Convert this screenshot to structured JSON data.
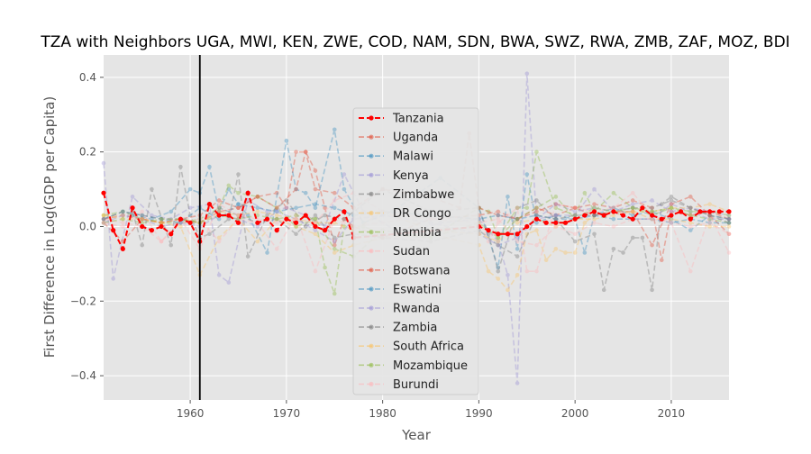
{
  "chart_data": {
    "type": "line",
    "title": "TZA with Neighbors UGA, MWI, KEN, ZWE, COD, NAM, SDN, BWA, SWZ, RWA, ZMB, ZAF, MOZ, BDI",
    "xlabel": "Year",
    "ylabel": "First Difference in Log(GDP per Capita)",
    "xlim": [
      1951,
      2016
    ],
    "ylim": [
      -0.465,
      0.46
    ],
    "xticks": [
      1960,
      1970,
      1980,
      1990,
      2000,
      2010
    ],
    "yticks": [
      -0.4,
      -0.2,
      0.0,
      0.2,
      0.4
    ],
    "ytick_labels": [
      "−0.4",
      "−0.2",
      "0.0",
      "0.2",
      "0.4"
    ],
    "grid": true,
    "legend_position": "center",
    "vertical_line": {
      "x": 1961,
      "color": "#000000"
    },
    "series": [
      {
        "name": "Tanzania",
        "color": "#ff0000",
        "x": [
          1951,
          1952,
          1953,
          1954,
          1955,
          1956,
          1957,
          1958,
          1959,
          1960,
          1961,
          1962,
          1963,
          1964,
          1965,
          1966,
          1967,
          1968,
          1969,
          1970,
          1971,
          1972,
          1973,
          1974,
          1975,
          1976,
          1977,
          1990,
          1991,
          1992,
          1993,
          1994,
          1995,
          1996,
          1997,
          1998,
          1999,
          2000,
          2001,
          2002,
          2003,
          2004,
          2005,
          2006,
          2007,
          2008,
          2009,
          2010,
          2011,
          2012,
          2013,
          2014,
          2015,
          2016
        ],
        "values": [
          0.09,
          -0.01,
          -0.06,
          0.05,
          0.0,
          -0.01,
          0.0,
          -0.02,
          0.02,
          0.01,
          -0.04,
          0.06,
          0.03,
          0.03,
          0.01,
          0.09,
          0.01,
          0.02,
          -0.01,
          0.02,
          0.01,
          0.03,
          0.0,
          -0.01,
          0.02,
          0.04,
          -0.03,
          0.0,
          -0.01,
          -0.02,
          -0.02,
          -0.02,
          0.0,
          0.02,
          0.01,
          0.01,
          0.01,
          0.02,
          0.03,
          0.04,
          0.03,
          0.04,
          0.03,
          0.02,
          0.05,
          0.03,
          0.02,
          0.03,
          0.04,
          0.02,
          0.04,
          0.04,
          0.04,
          0.04
        ]
      },
      {
        "name": "Uganda",
        "color": "#e24a33",
        "x": [
          1951,
          1953,
          1955,
          1957,
          1959,
          1961,
          1963,
          1965,
          1967,
          1969,
          1970,
          1971,
          1972,
          1973,
          1974,
          1975,
          1976,
          1977,
          1980,
          1985,
          1990,
          1992,
          1994,
          1996,
          1998,
          2000,
          2002,
          2004,
          2006,
          2008,
          2009,
          2010,
          2012,
          2014,
          2016
        ],
        "values": [
          0.02,
          0.03,
          0.02,
          0.01,
          0.02,
          0.01,
          0.04,
          0.05,
          0.08,
          0.09,
          0.05,
          0.2,
          0.2,
          0.15,
          0.05,
          -0.05,
          0.02,
          0.0,
          -0.03,
          0.02,
          0.03,
          0.04,
          0.02,
          0.05,
          0.03,
          0.05,
          0.06,
          0.05,
          0.07,
          0.05,
          -0.09,
          0.04,
          0.03,
          0.04,
          0.02
        ]
      },
      {
        "name": "Malawi",
        "color": "#348abd",
        "x": [
          1954,
          1956,
          1958,
          1960,
          1961,
          1962,
          1963,
          1964,
          1965,
          1966,
          1968,
          1970,
          1971,
          1972,
          1973,
          1975,
          1976,
          1978,
          1981,
          1986,
          1990,
          1992,
          1993,
          1994,
          1995,
          1996,
          1998,
          2000,
          2001,
          2002,
          2004,
          2006,
          2008,
          2010,
          2012,
          2014,
          2016
        ],
        "values": [
          0.03,
          0.02,
          0.04,
          0.1,
          0.09,
          0.16,
          0.04,
          0.1,
          0.06,
          0.03,
          -0.07,
          0.23,
          0.1,
          0.09,
          0.05,
          0.26,
          0.1,
          0.01,
          0.04,
          0.13,
          0.05,
          -0.11,
          0.08,
          -0.06,
          0.14,
          0.01,
          0.03,
          0.02,
          -0.07,
          0.03,
          0.05,
          0.03,
          0.04,
          0.02,
          -0.01,
          0.03,
          0.02
        ]
      },
      {
        "name": "Kenya",
        "color": "#988ed5",
        "x": [
          1951,
          1952,
          1954,
          1956,
          1958,
          1960,
          1962,
          1963,
          1964,
          1966,
          1968,
          1970,
          1972,
          1974,
          1976,
          1978,
          1982,
          1986,
          1990,
          1992,
          1993,
          1994,
          1995,
          1996,
          1998,
          2000,
          2002,
          2004,
          2006,
          2008,
          2010,
          2012,
          2014,
          2016
        ],
        "values": [
          0.17,
          -0.14,
          0.08,
          0.03,
          0.02,
          0.05,
          0.06,
          -0.13,
          -0.15,
          0.07,
          0.04,
          0.05,
          0.03,
          0.0,
          0.14,
          0.04,
          -0.02,
          0.01,
          0.02,
          -0.04,
          -0.13,
          -0.42,
          0.41,
          0.02,
          0.03,
          0.03,
          0.1,
          0.04,
          0.02,
          0.02,
          0.06,
          0.04,
          0.02,
          0.02
        ]
      },
      {
        "name": "Zimbabwe",
        "color": "#777777",
        "x": [
          1954,
          1955,
          1956,
          1958,
          1959,
          1960,
          1961,
          1962,
          1964,
          1965,
          1966,
          1968,
          1970,
          1972,
          1974,
          1976,
          1980,
          1985,
          1990,
          1991,
          1992,
          1994,
          1996,
          1998,
          2000,
          2002,
          2003,
          2004,
          2005,
          2006,
          2007,
          2008,
          2009,
          2010,
          2012,
          2014,
          2016
        ],
        "values": [
          0.04,
          -0.05,
          0.1,
          -0.05,
          0.16,
          0.03,
          -0.03,
          -0.02,
          0.02,
          0.14,
          -0.08,
          0.03,
          0.07,
          0.0,
          0.03,
          0.02,
          0.1,
          0.04,
          0.05,
          -0.02,
          -0.12,
          0.05,
          0.07,
          0.02,
          -0.04,
          -0.02,
          -0.17,
          -0.06,
          -0.07,
          -0.03,
          -0.03,
          -0.17,
          0.06,
          0.08,
          0.05,
          0.03,
          0.02
        ]
      },
      {
        "name": "DR Congo",
        "color": "#fbc15e",
        "x": [
          1951,
          1953,
          1955,
          1957,
          1959,
          1961,
          1963,
          1965,
          1967,
          1969,
          1971,
          1973,
          1975,
          1977,
          1980,
          1985,
          1990,
          1991,
          1992,
          1993,
          1994,
          1995,
          1996,
          1997,
          1998,
          1999,
          2000,
          2001,
          2002,
          2004,
          2006,
          2008,
          2010,
          2012,
          2014,
          2016
        ],
        "values": [
          0.03,
          0.03,
          0.02,
          0.01,
          0.0,
          -0.13,
          -0.03,
          0.02,
          -0.04,
          0.02,
          0.0,
          -0.02,
          -0.07,
          -0.05,
          -0.03,
          -0.02,
          -0.05,
          -0.12,
          -0.14,
          -0.17,
          -0.13,
          -0.02,
          -0.01,
          -0.09,
          -0.06,
          -0.07,
          -0.07,
          0.01,
          0.03,
          0.04,
          0.04,
          0.04,
          0.05,
          0.05,
          0.06,
          0.04
        ]
      },
      {
        "name": "Namibia",
        "color": "#8eba42",
        "x": [
          1951,
          1953,
          1955,
          1957,
          1959,
          1961,
          1963,
          1964,
          1965,
          1967,
          1969,
          1971,
          1973,
          1974,
          1975,
          1976,
          1978,
          1980,
          1985,
          1990,
          1991,
          1992,
          1994,
          1995,
          1996,
          1998,
          2000,
          2001,
          2002,
          2004,
          2006,
          2008,
          2010,
          2012,
          2014,
          2016
        ],
        "values": [
          0.03,
          0.04,
          0.02,
          0.01,
          0.01,
          0.02,
          0.05,
          0.11,
          0.09,
          0.08,
          0.05,
          0.0,
          0.02,
          -0.11,
          -0.18,
          0.0,
          0.0,
          -0.02,
          -0.03,
          0.05,
          0.04,
          -0.03,
          0.05,
          0.05,
          0.2,
          0.05,
          0.03,
          0.09,
          0.04,
          0.09,
          0.05,
          0.03,
          0.05,
          0.03,
          0.02,
          0.01
        ]
      },
      {
        "name": "Sudan",
        "color": "#ffb5b8",
        "x": [
          1951,
          1953,
          1955,
          1957,
          1959,
          1961,
          1963,
          1965,
          1967,
          1969,
          1971,
          1973,
          1975,
          1977,
          1980,
          1985,
          1990,
          1991,
          1992,
          1993,
          1994,
          1995,
          1996,
          1998,
          2000,
          2002,
          2004,
          2006,
          2008,
          2010,
          2012,
          2014,
          2016
        ],
        "values": [
          0.02,
          0.01,
          0.0,
          -0.04,
          0.01,
          0.02,
          -0.04,
          0.02,
          0.01,
          -0.06,
          0.03,
          -0.12,
          0.02,
          0.0,
          0.01,
          0.03,
          0.02,
          -0.04,
          0.01,
          0.03,
          0.05,
          -0.12,
          -0.12,
          0.06,
          0.05,
          0.04,
          0.05,
          0.09,
          0.03,
          0.01,
          -0.12,
          0.03,
          -0.07
        ]
      },
      {
        "name": "Botswana",
        "color": "#e24a33",
        "x": [
          1951,
          1953,
          1955,
          1957,
          1959,
          1961,
          1963,
          1965,
          1967,
          1969,
          1971,
          1972,
          1973,
          1975,
          1977,
          1980,
          1985,
          1988,
          1989,
          1990,
          1992,
          1994,
          1996,
          1998,
          2000,
          2002,
          2004,
          2006,
          2008,
          2010,
          2012,
          2014,
          2016
        ],
        "values": [
          0.01,
          -0.04,
          0.02,
          0.01,
          0.02,
          0.03,
          0.07,
          0.05,
          0.08,
          0.05,
          0.1,
          0.2,
          0.1,
          0.09,
          0.05,
          0.1,
          0.08,
          0.05,
          0.25,
          0.05,
          0.03,
          0.02,
          0.04,
          0.06,
          0.05,
          0.03,
          0.04,
          0.04,
          -0.05,
          0.06,
          0.08,
          0.03,
          -0.02
        ]
      },
      {
        "name": "Eswatini",
        "color": "#348abd",
        "x": [
          1951,
          1953,
          1955,
          1957,
          1959,
          1961,
          1963,
          1965,
          1967,
          1969,
          1971,
          1973,
          1975,
          1977,
          1980,
          1985,
          1990,
          1992,
          1994,
          1996,
          1998,
          2000,
          2002,
          2004,
          2006,
          2008,
          2010,
          2012,
          2014,
          2016
        ],
        "values": [
          0.02,
          0.04,
          0.03,
          0.02,
          0.01,
          0.05,
          0.02,
          0.06,
          0.05,
          0.04,
          0.05,
          0.06,
          0.05,
          0.03,
          0.04,
          0.03,
          0.02,
          0.03,
          0.02,
          0.03,
          0.02,
          0.02,
          0.03,
          0.02,
          0.02,
          0.02,
          0.01,
          0.02,
          0.01,
          0.01
        ]
      },
      {
        "name": "Rwanda",
        "color": "#988ed5",
        "x": [
          1951,
          1953,
          1955,
          1957,
          1959,
          1961,
          1963,
          1965,
          1967,
          1969,
          1971,
          1973,
          1975,
          1977,
          1980,
          1985,
          1990,
          1992,
          1994,
          1996,
          1998,
          2000,
          2002,
          2004,
          2006,
          2008,
          2010,
          2012,
          2014,
          2016
        ],
        "values": [
          0.01,
          0.03,
          0.02,
          0.0,
          0.01,
          0.0,
          0.03,
          0.02,
          0.0,
          0.04,
          0.02,
          -0.01,
          -0.04,
          0.02,
          0.03,
          0.01,
          -0.02,
          -0.05,
          -0.03,
          0.02,
          0.06,
          0.04,
          0.05,
          0.04,
          0.06,
          0.07,
          0.04,
          0.05,
          0.04,
          0.03
        ]
      },
      {
        "name": "Zambia",
        "color": "#777777",
        "x": [
          1951,
          1953,
          1955,
          1957,
          1959,
          1961,
          1963,
          1965,
          1967,
          1969,
          1971,
          1973,
          1975,
          1977,
          1980,
          1985,
          1990,
          1992,
          1994,
          1996,
          1998,
          2000,
          2002,
          2004,
          2006,
          2008,
          2010,
          2012,
          2014,
          2016
        ],
        "values": [
          0.02,
          0.04,
          0.03,
          0.02,
          0.02,
          0.01,
          0.05,
          0.03,
          0.01,
          0.02,
          -0.02,
          0.03,
          -0.03,
          -0.02,
          -0.03,
          -0.04,
          -0.01,
          -0.05,
          -0.08,
          0.03,
          0.02,
          0.03,
          0.03,
          0.04,
          0.05,
          0.05,
          0.07,
          0.05,
          0.03,
          0.01
        ]
      },
      {
        "name": "South Africa",
        "color": "#fbc15e",
        "x": [
          1951,
          1953,
          1955,
          1957,
          1959,
          1961,
          1963,
          1965,
          1967,
          1969,
          1971,
          1973,
          1975,
          1977,
          1980,
          1985,
          1990,
          1992,
          1994,
          1996,
          1998,
          2000,
          2002,
          2004,
          2006,
          2008,
          2010,
          2012,
          2014,
          2016
        ],
        "values": [
          0.03,
          0.02,
          0.02,
          0.01,
          0.02,
          0.01,
          0.04,
          0.03,
          0.04,
          0.03,
          0.02,
          0.01,
          0.01,
          -0.01,
          0.04,
          -0.01,
          -0.02,
          -0.04,
          0.01,
          0.02,
          0.0,
          0.02,
          0.02,
          0.03,
          0.04,
          0.02,
          0.02,
          0.01,
          0.0,
          0.0
        ]
      },
      {
        "name": "Mozambique",
        "color": "#8eba42",
        "x": [
          1951,
          1953,
          1955,
          1957,
          1959,
          1961,
          1963,
          1965,
          1967,
          1969,
          1971,
          1973,
          1975,
          1977,
          1980,
          1985,
          1990,
          1992,
          1994,
          1996,
          1998,
          2000,
          2002,
          2004,
          2006,
          2008,
          2010,
          2012,
          2014,
          2016
        ],
        "values": [
          0.01,
          0.02,
          0.01,
          0.02,
          0.02,
          0.01,
          0.03,
          0.02,
          0.03,
          0.02,
          0.03,
          0.02,
          -0.06,
          -0.08,
          -0.01,
          -0.03,
          0.01,
          -0.03,
          0.02,
          0.05,
          0.08,
          0.02,
          0.05,
          0.04,
          0.05,
          0.04,
          0.05,
          0.04,
          0.04,
          0.03
        ]
      },
      {
        "name": "Burundi",
        "color": "#ffb5b8",
        "x": [
          1951,
          1953,
          1955,
          1957,
          1959,
          1961,
          1963,
          1965,
          1967,
          1969,
          1971,
          1973,
          1975,
          1977,
          1980,
          1985,
          1990,
          1992,
          1994,
          1996,
          1998,
          2000,
          2002,
          2004,
          2006,
          2008,
          2010,
          2012,
          2014,
          2016
        ],
        "values": [
          0.01,
          0.0,
          0.04,
          -0.04,
          0.02,
          -0.06,
          0.06,
          0.03,
          0.02,
          0.01,
          0.02,
          0.01,
          0.07,
          0.09,
          0.04,
          0.02,
          0.01,
          0.02,
          -0.04,
          -0.05,
          0.0,
          -0.02,
          0.01,
          0.0,
          0.02,
          0.02,
          0.01,
          0.0,
          0.01,
          -0.02
        ]
      }
    ]
  }
}
